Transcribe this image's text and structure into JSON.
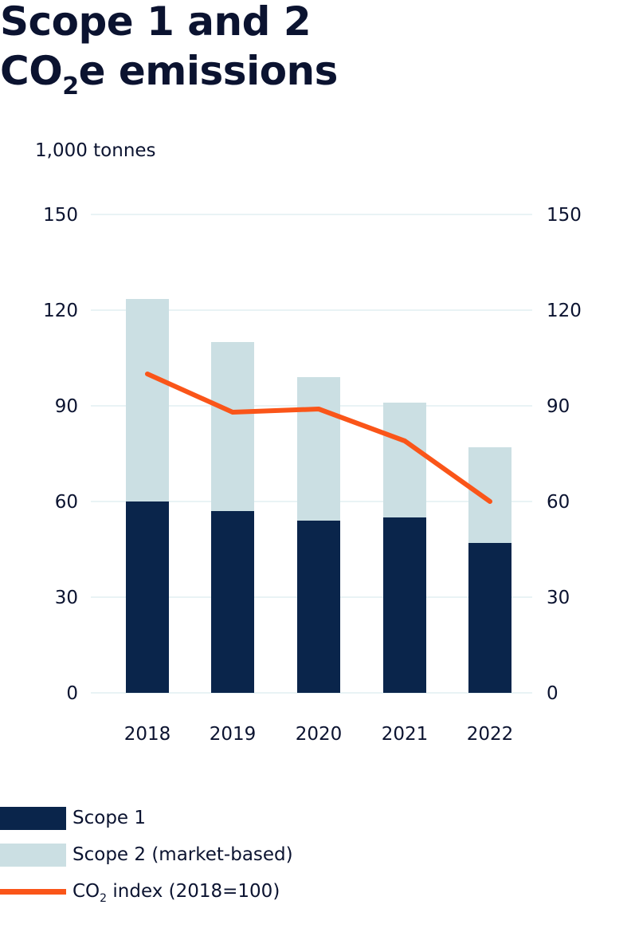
{
  "chart_data": {
    "type": "bar",
    "stacked": true,
    "title_parts": {
      "line1": "Scope 1 and 2",
      "co": "CO",
      "sub": "2",
      "rest": "e emissions"
    },
    "title": "Scope 1 and 2 CO2e emissions",
    "ylabel": "1,000 tonnes",
    "xlabel": "",
    "categories": [
      "2018",
      "2019",
      "2020",
      "2021",
      "2022"
    ],
    "series": [
      {
        "name": "Scope 1",
        "kind": "bar",
        "color": "#0a254b",
        "values": [
          60,
          57,
          54,
          55,
          47
        ]
      },
      {
        "name": "Scope 2 (market-based)",
        "kind": "bar",
        "color": "#cbdfe3",
        "values": [
          63.5,
          53,
          45,
          36,
          30
        ]
      },
      {
        "name": "CO2 index (2018=100)",
        "kind": "line",
        "axis": "right",
        "color": "#fa5519",
        "values": [
          100,
          88,
          89,
          79,
          60
        ]
      }
    ],
    "ylim": [
      0,
      150
    ],
    "y_ticks": [
      "0",
      "30",
      "60",
      "90",
      "120",
      "150"
    ],
    "y2lim": [
      0,
      150
    ],
    "y2_ticks": [
      "0",
      "30",
      "60",
      "90",
      "120",
      "150"
    ],
    "grid": true,
    "legend_position": "bottom-left",
    "legend": [
      {
        "label": "Scope 1",
        "type": "box",
        "color": "#0a254b"
      },
      {
        "label": "Scope 2 (market-based)",
        "type": "box",
        "color": "#cbdfe3"
      },
      {
        "label_main": "CO",
        "label_sub": "2",
        "label_rest": " index (2018=100)",
        "type": "line",
        "color": "#fa5519"
      }
    ]
  }
}
